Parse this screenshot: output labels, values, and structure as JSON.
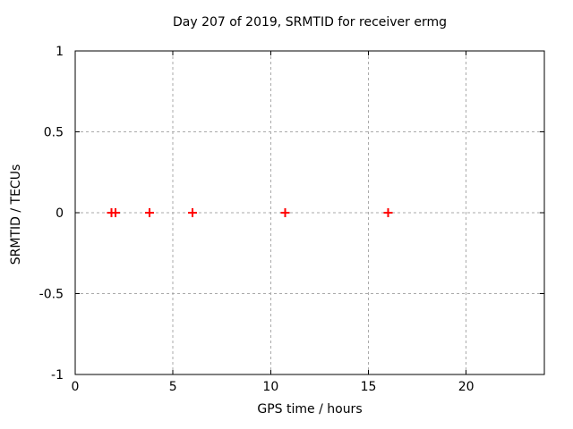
{
  "chart_data": {
    "type": "scatter",
    "title": "Day 207 of 2019, SRMTID for receiver ermg",
    "xlabel": "GPS time / hours",
    "ylabel": "SRMTID / TECUs",
    "xlim": [
      0,
      24
    ],
    "ylim": [
      -1,
      1
    ],
    "xticks": {
      "values": [
        0,
        5,
        10,
        15,
        20
      ],
      "labels": [
        "0",
        "5",
        "10",
        "15",
        "20"
      ]
    },
    "yticks": {
      "values": [
        -1,
        -0.5,
        0,
        0.5,
        1
      ],
      "labels": [
        "-1",
        "-0.5",
        "0",
        "0.5",
        "1"
      ]
    },
    "grid": true,
    "legend_position": "none",
    "series": [
      {
        "name": "SRMTID",
        "marker": "plus",
        "color": "#ff0000",
        "x": [
          1.85,
          2.05,
          3.8,
          6.0,
          10.75,
          16.0
        ],
        "y": [
          0,
          0,
          0,
          0,
          0,
          0
        ]
      }
    ],
    "colors": {
      "background": "#ffffff",
      "border": "#000000",
      "grid": "#aaaaaa",
      "text": "#000000"
    }
  }
}
